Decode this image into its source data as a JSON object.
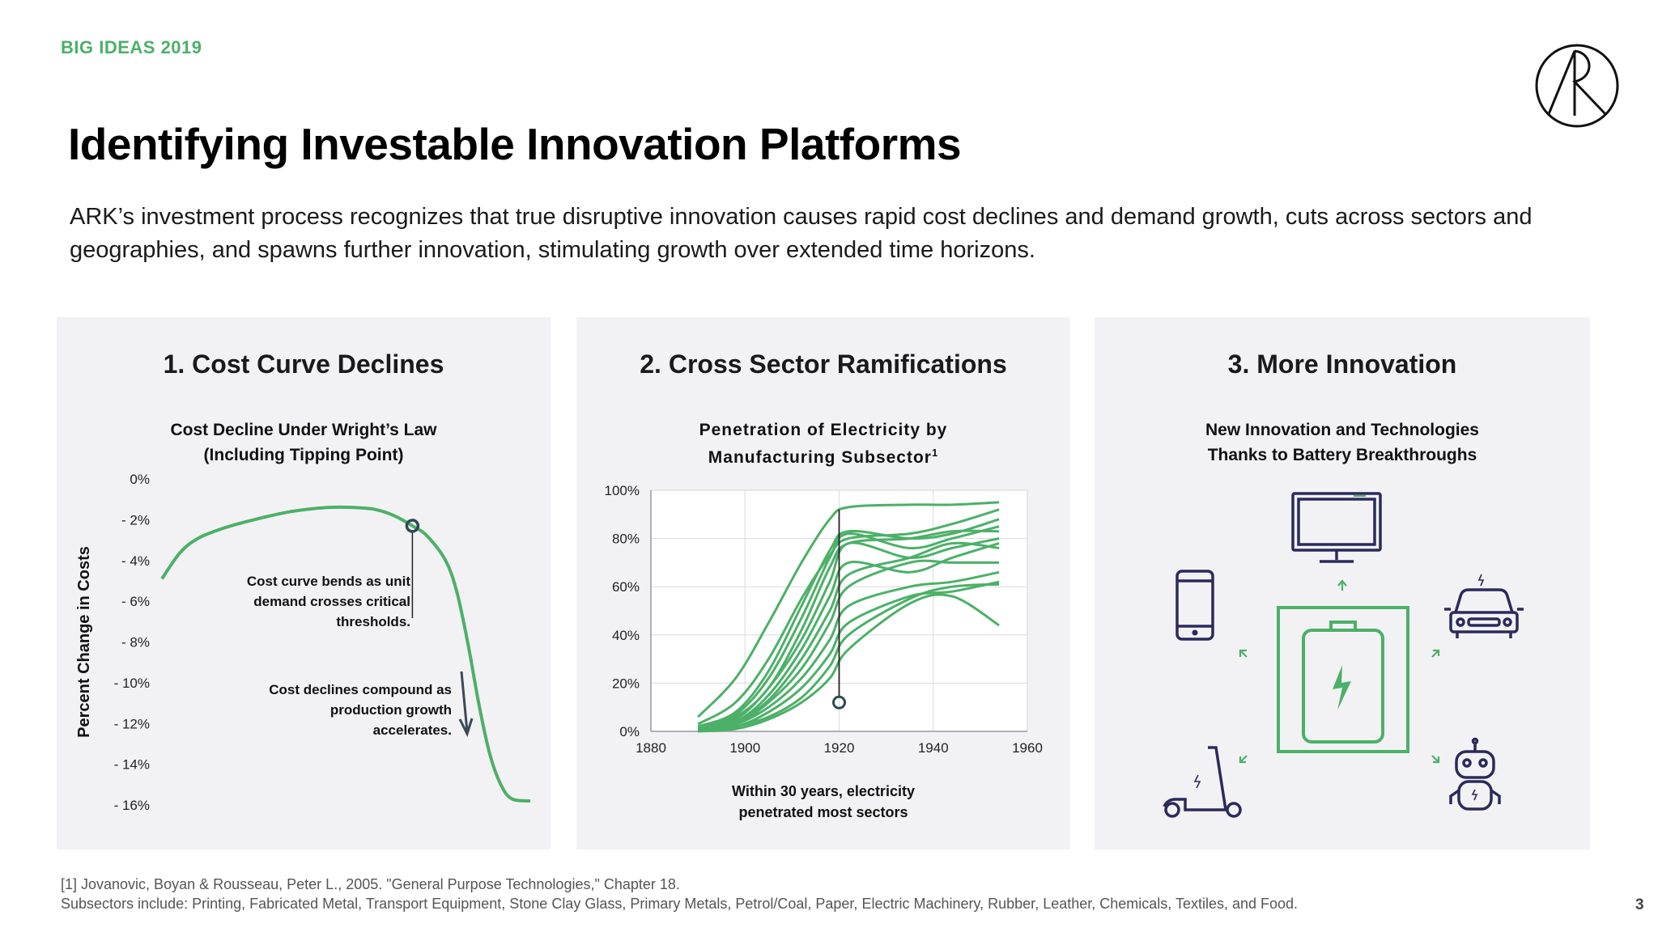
{
  "header": {
    "eyebrow": "BIG IDEAS 2019",
    "title": "Identifying Investable Innovation Platforms",
    "intro": "ARK’s investment process recognizes that true disruptive innovation causes rapid cost declines and demand growth, cuts across sectors and geographies, and spawns further innovation, stimulating growth over extended time horizons."
  },
  "panels": {
    "p1": {
      "title": "1. Cost Curve Declines",
      "subtitle_line1": "Cost Decline Under Wright’s Law",
      "subtitle_line2": "(Including Tipping Point)",
      "annotation1": [
        "Cost curve bends as unit",
        "demand crosses critical",
        "thresholds."
      ],
      "annotation2": [
        "Cost declines compound as",
        "production growth",
        "accelerates."
      ]
    },
    "p2": {
      "title": "2. Cross Sector Ramifications",
      "subtitle_line1": "Penetration of Electricity by",
      "subtitle_line2": "Manufacturing Subsector",
      "subtitle_sup": "1",
      "caption_line1": "Within 30 years, electricity",
      "caption_line2": "penetrated most sectors"
    },
    "p3": {
      "title": "3. More Innovation",
      "subtitle_line1": "New Innovation and Technologies",
      "subtitle_line2": "Thanks to Battery Breakthroughs",
      "icons": [
        "monitor-icon",
        "smartphone-icon",
        "car-icon",
        "battery-icon",
        "scooter-icon",
        "robot-icon"
      ]
    }
  },
  "footnote": {
    "line1": "[1] Jovanovic, Boyan & Rousseau, Peter L., 2005. \"General Purpose Technologies,\" Chapter 18.",
    "line2": "Subsectors include: Printing, Fabricated Metal, Transport Equipment, Stone Clay Glass, Primary Metals, Petrol/Coal, Paper, Electric Machinery, Rubber, Leather, Chemicals, Textiles, and Food."
  },
  "page_number": "3",
  "colors": {
    "green": "#4cb068",
    "navy": "#2b2a5c",
    "panel_bg": "#f2f2f4"
  },
  "chart_data": [
    {
      "type": "line",
      "title": "Cost Decline Under Wright’s Law (Including Tipping Point)",
      "xlabel": "",
      "ylabel": "Percent Change in Costs",
      "y_ticks": [
        "0%",
        "- 2%",
        "- 4%",
        "- 6%",
        "- 8%",
        "- 10%",
        "- 12%",
        "- 14%",
        "- 16%"
      ],
      "ylim": [
        -16,
        0
      ],
      "xlim": [
        0,
        100
      ],
      "series": [
        {
          "x": [
            0,
            5,
            10,
            17,
            25,
            35,
            45,
            52,
            58,
            63,
            68,
            72,
            77,
            80,
            83,
            86,
            89,
            92,
            95,
            100
          ],
          "y": [
            -4.9,
            -3.6,
            -2.9,
            -2.4,
            -2.0,
            -1.6,
            -1.4,
            -1.4,
            -1.5,
            -1.8,
            -2.3,
            -2.8,
            -4.0,
            -5.5,
            -8.0,
            -11.0,
            -13.5,
            -15.0,
            -15.7,
            -15.8
          ]
        }
      ],
      "marker": {
        "x": 68,
        "y": -2.3
      },
      "grid": false
    },
    {
      "type": "line",
      "title": "Penetration of Electricity by Manufacturing Subsector",
      "xlabel": "",
      "ylabel": "",
      "x_ticks": [
        1880,
        1900,
        1920,
        1940,
        1960
      ],
      "y_ticks": [
        "0%",
        "20%",
        "40%",
        "60%",
        "80%",
        "100%"
      ],
      "xlim": [
        1880,
        1960
      ],
      "ylim": [
        0,
        100
      ],
      "grid": true,
      "marker_line": {
        "x": 1920,
        "y_top": 92,
        "y_bottom": 12
      },
      "series": [
        {
          "x": [
            1890,
            1898,
            1905,
            1912,
            1918,
            1922,
            1935,
            1944,
            1954
          ],
          "y": [
            6,
            22,
            45,
            70,
            88,
            93,
            94,
            94,
            95
          ]
        },
        {
          "x": [
            1890,
            1898,
            1905,
            1912,
            1918,
            1922,
            1935,
            1944,
            1954
          ],
          "y": [
            3,
            12,
            30,
            55,
            73,
            80,
            82,
            86,
            92
          ]
        },
        {
          "x": [
            1890,
            1898,
            1905,
            1912,
            1918,
            1922,
            1935,
            1944,
            1954
          ],
          "y": [
            2,
            8,
            25,
            52,
            75,
            83,
            80,
            82,
            88
          ]
        },
        {
          "x": [
            1890,
            1898,
            1905,
            1912,
            1918,
            1922,
            1935,
            1944,
            1954
          ],
          "y": [
            2,
            7,
            22,
            47,
            72,
            82,
            76,
            80,
            85
          ]
        },
        {
          "x": [
            1890,
            1898,
            1905,
            1912,
            1918,
            1922,
            1935,
            1944,
            1954
          ],
          "y": [
            1,
            6,
            18,
            42,
            68,
            78,
            80,
            83,
            83
          ]
        },
        {
          "x": [
            1890,
            1898,
            1905,
            1912,
            1918,
            1922,
            1935,
            1944,
            1954
          ],
          "y": [
            1,
            5,
            18,
            38,
            62,
            78,
            72,
            76,
            80
          ]
        },
        {
          "x": [
            1890,
            1898,
            1905,
            1912,
            1918,
            1922,
            1935,
            1944,
            1954
          ],
          "y": [
            1,
            4,
            15,
            34,
            56,
            70,
            66,
            72,
            78
          ]
        },
        {
          "x": [
            1890,
            1898,
            1905,
            1912,
            1918,
            1922,
            1935,
            1944,
            1954
          ],
          "y": [
            1,
            4,
            13,
            30,
            50,
            65,
            72,
            78,
            76
          ]
        },
        {
          "x": [
            1890,
            1898,
            1905,
            1912,
            1918,
            1922,
            1935,
            1944,
            1954
          ],
          "y": [
            1,
            3,
            12,
            26,
            45,
            60,
            70,
            70,
            70
          ]
        },
        {
          "x": [
            1890,
            1898,
            1905,
            1912,
            1918,
            1922,
            1935,
            1944,
            1954
          ],
          "y": [
            1,
            3,
            10,
            22,
            38,
            52,
            60,
            62,
            66
          ]
        },
        {
          "x": [
            1890,
            1898,
            1905,
            1912,
            1918,
            1922,
            1935,
            1944,
            1954
          ],
          "y": [
            1,
            2,
            8,
            18,
            32,
            45,
            56,
            58,
            62
          ]
        },
        {
          "x": [
            1890,
            1898,
            1905,
            1912,
            1918,
            1922,
            1935,
            1944,
            1954
          ],
          "y": [
            0,
            2,
            6,
            14,
            27,
            40,
            55,
            60,
            61
          ]
        },
        {
          "x": [
            1890,
            1898,
            1905,
            1912,
            1918,
            1922,
            1935,
            1944,
            1954
          ],
          "y": [
            0,
            1,
            5,
            12,
            22,
            34,
            53,
            56,
            44
          ]
        }
      ]
    }
  ]
}
